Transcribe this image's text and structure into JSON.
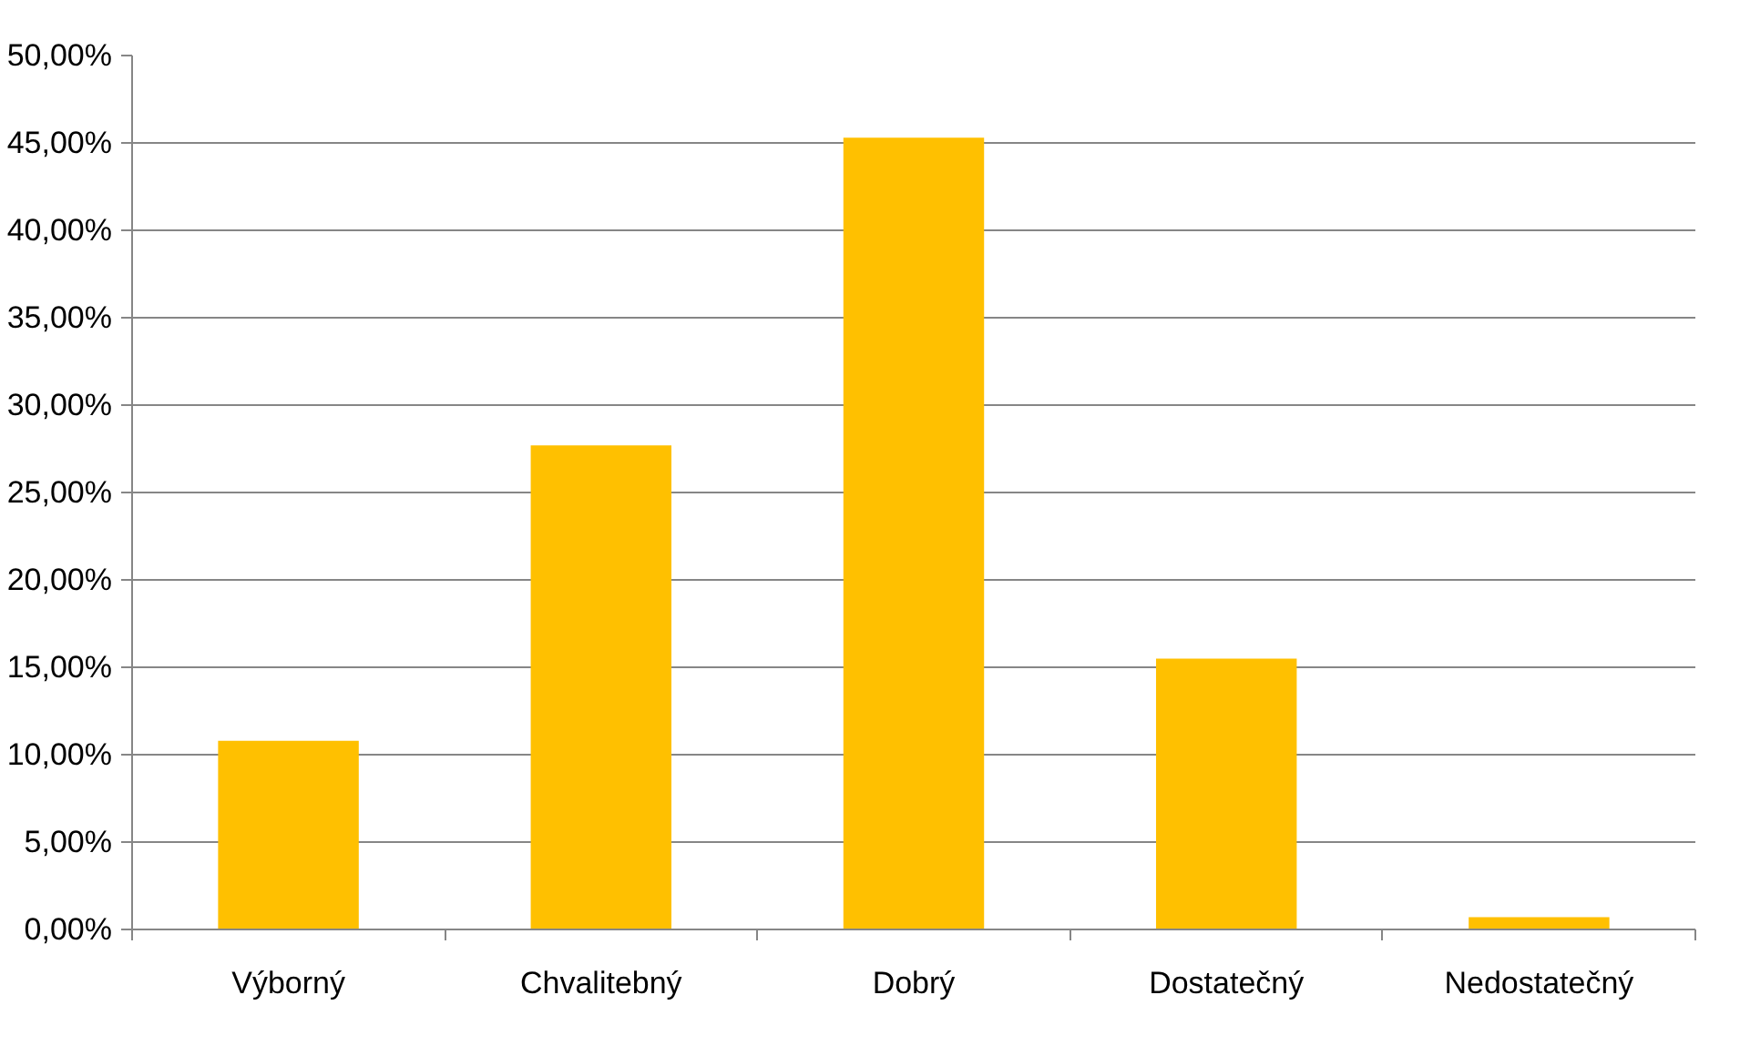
{
  "chart_data": {
    "type": "bar",
    "categories": [
      "Výborný",
      "Chvalitebný",
      "Dobrý",
      "Dostatečný",
      "Nedostatečný"
    ],
    "values": [
      10.8,
      27.7,
      45.3,
      15.5,
      0.7
    ],
    "color": "#ffc000",
    "ylim": [
      0,
      50
    ],
    "yticks": [
      {
        "value": 0,
        "label": "0,00%"
      },
      {
        "value": 5,
        "label": "5,00%"
      },
      {
        "value": 10,
        "label": "10,00%"
      },
      {
        "value": 15,
        "label": "15,00%"
      },
      {
        "value": 20,
        "label": "20,00%"
      },
      {
        "value": 25,
        "label": "25,00%"
      },
      {
        "value": 30,
        "label": "30,00%"
      },
      {
        "value": 35,
        "label": "35,00%"
      },
      {
        "value": 40,
        "label": "40,00%"
      },
      {
        "value": 45,
        "label": "45,00%"
      },
      {
        "value": 50,
        "label": "50,00%"
      }
    ],
    "grid": "y"
  }
}
